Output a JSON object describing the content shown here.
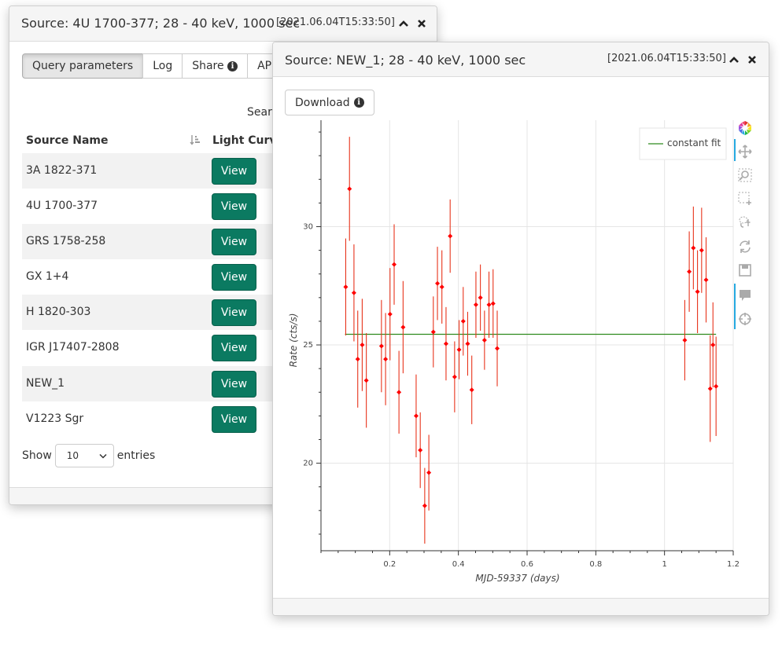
{
  "back_panel": {
    "title": "Source: 4U 1700-377; 28 - 40 keV, 1000 sec",
    "timestamp": "[2021.06.04T15:33:50]",
    "tabs": [
      {
        "label": "Query parameters"
      },
      {
        "label": "Log"
      },
      {
        "label": "Share"
      },
      {
        "label": "API c"
      }
    ],
    "search_label": "Searc",
    "table": {
      "headers": {
        "name": "Source Name",
        "lc": "Light Curve"
      },
      "rows": [
        {
          "name": "3A 1822-371",
          "action": "View"
        },
        {
          "name": "4U 1700-377",
          "action": "View"
        },
        {
          "name": "GRS 1758-258",
          "action": "View"
        },
        {
          "name": "GX 1+4",
          "action": "View"
        },
        {
          "name": "H 1820-303",
          "action": "View"
        },
        {
          "name": "IGR J17407-2808",
          "action": "View"
        },
        {
          "name": "NEW_1",
          "action": "View"
        },
        {
          "name": "V1223 Sgr",
          "action": "View"
        }
      ]
    },
    "show": {
      "prefix": "Show",
      "value": "10",
      "suffix": "entries"
    }
  },
  "front_panel": {
    "title": "Source: NEW_1; 28 - 40 keV, 1000 sec",
    "timestamp": "[2021.06.04T15:33:50]",
    "download_label": "Download",
    "toolbar": [
      "bokeh-logo-icon",
      "pan-icon",
      "box-zoom-icon",
      "box-select-icon",
      "lasso-icon",
      "reset-icon",
      "save-icon",
      "hover-icon",
      "crosshair-icon"
    ]
  },
  "chart_data": {
    "type": "scatter",
    "xlabel": "MJD-59337  (days)",
    "ylabel": "Rate  (cts/s)",
    "xlim": [
      0.0,
      1.2
    ],
    "ylim": [
      16.3,
      34.5
    ],
    "x_ticks": [
      "0.2",
      "0.4",
      "0.6",
      "0.8",
      "1",
      "1.2"
    ],
    "y_ticks": [
      "20",
      "25",
      "30"
    ],
    "grid": true,
    "legend": {
      "label": "constant fit",
      "placement": "top-right"
    },
    "colors": {
      "points": "#ff0000",
      "errorbars": "#e8331b",
      "fit": "#2f8a1e"
    },
    "constant_fit": {
      "value": 25.45,
      "x_start": 0.07,
      "x_end": 1.15
    },
    "points": [
      {
        "x": 0.072,
        "y": 27.45,
        "err": 2.05
      },
      {
        "x": 0.083,
        "y": 31.6,
        "err": 2.2
      },
      {
        "x": 0.096,
        "y": 27.2,
        "err": 2.05
      },
      {
        "x": 0.107,
        "y": 24.4,
        "err": 2.05
      },
      {
        "x": 0.12,
        "y": 25.0,
        "err": 1.95
      },
      {
        "x": 0.132,
        "y": 23.5,
        "err": 2.0
      },
      {
        "x": 0.176,
        "y": 24.95,
        "err": 1.95
      },
      {
        "x": 0.188,
        "y": 24.4,
        "err": 1.95
      },
      {
        "x": 0.201,
        "y": 26.3,
        "err": 1.95
      },
      {
        "x": 0.213,
        "y": 28.4,
        "err": 1.7
      },
      {
        "x": 0.227,
        "y": 23.0,
        "err": 1.75
      },
      {
        "x": 0.239,
        "y": 25.75,
        "err": 1.95
      },
      {
        "x": 0.277,
        "y": 22.0,
        "err": 1.75
      },
      {
        "x": 0.289,
        "y": 20.55,
        "err": 1.6
      },
      {
        "x": 0.302,
        "y": 18.2,
        "err": 1.6
      },
      {
        "x": 0.314,
        "y": 19.6,
        "err": 1.6
      },
      {
        "x": 0.327,
        "y": 25.55,
        "err": 1.5
      },
      {
        "x": 0.339,
        "y": 27.6,
        "err": 1.55
      },
      {
        "x": 0.352,
        "y": 27.45,
        "err": 1.55
      },
      {
        "x": 0.364,
        "y": 25.05,
        "err": 1.55
      },
      {
        "x": 0.376,
        "y": 29.6,
        "err": 1.55
      },
      {
        "x": 0.389,
        "y": 23.65,
        "err": 1.5
      },
      {
        "x": 0.402,
        "y": 24.8,
        "err": 1.25
      },
      {
        "x": 0.414,
        "y": 26.0,
        "err": 1.45
      },
      {
        "x": 0.427,
        "y": 25.05,
        "err": 1.35
      },
      {
        "x": 0.439,
        "y": 23.1,
        "err": 1.45
      },
      {
        "x": 0.451,
        "y": 26.7,
        "err": 1.4
      },
      {
        "x": 0.464,
        "y": 27.0,
        "err": 1.4
      },
      {
        "x": 0.476,
        "y": 25.2,
        "err": 1.25
      },
      {
        "x": 0.489,
        "y": 26.7,
        "err": 1.4
      },
      {
        "x": 0.501,
        "y": 26.75,
        "err": 1.45
      },
      {
        "x": 0.513,
        "y": 24.85,
        "err": 1.6
      },
      {
        "x": 1.059,
        "y": 25.2,
        "err": 1.7
      },
      {
        "x": 1.072,
        "y": 28.1,
        "err": 1.7
      },
      {
        "x": 1.084,
        "y": 29.1,
        "err": 1.75
      },
      {
        "x": 1.096,
        "y": 27.25,
        "err": 1.75
      },
      {
        "x": 1.108,
        "y": 29.0,
        "err": 1.8
      },
      {
        "x": 1.121,
        "y": 27.75,
        "err": 1.8
      },
      {
        "x": 1.133,
        "y": 23.15,
        "err": 2.25
      },
      {
        "x": 1.141,
        "y": 25.0,
        "err": 1.8
      },
      {
        "x": 1.15,
        "y": 23.25,
        "err": 2.1
      }
    ]
  }
}
